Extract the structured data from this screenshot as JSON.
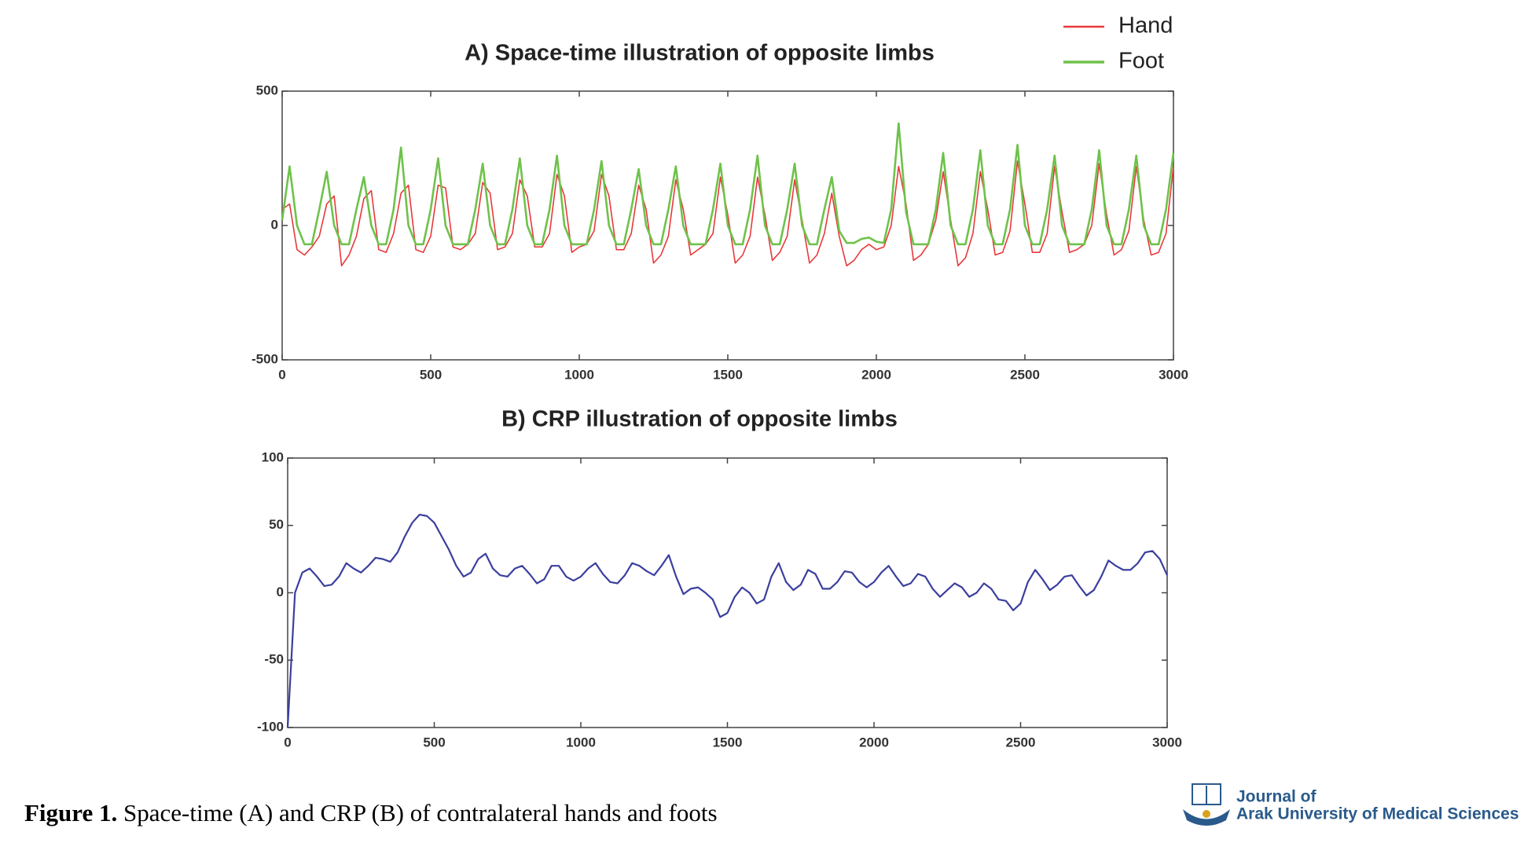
{
  "chart_data": [
    {
      "type": "line",
      "title": "A) Space-time illustration of opposite limbs",
      "x": [
        0,
        25,
        50,
        75,
        100,
        125,
        150,
        175,
        200,
        225,
        250,
        275,
        300,
        325,
        350,
        375,
        400,
        425,
        450,
        475,
        500,
        525,
        550,
        575,
        600,
        625,
        650,
        675,
        700,
        725,
        750,
        775,
        800,
        825,
        850,
        875,
        900,
        925,
        950,
        975,
        1000,
        1025,
        1050,
        1075,
        1100,
        1125,
        1150,
        1175,
        1200,
        1225,
        1250,
        1275,
        1300,
        1325,
        1350,
        1375,
        1400,
        1425,
        1450,
        1475,
        1500,
        1525,
        1550,
        1575,
        1600,
        1625,
        1650,
        1675,
        1700,
        1725,
        1750,
        1775,
        1800,
        1825,
        1850,
        1875,
        1900,
        1925,
        1950,
        1975,
        2000,
        2025,
        2050,
        2075,
        2100,
        2125,
        2150,
        2175,
        2200,
        2225,
        2250,
        2275,
        2300,
        2325,
        2350,
        2375,
        2400,
        2425,
        2450,
        2475,
        2500,
        2525,
        2550,
        2575,
        2600,
        2625,
        2650,
        2675,
        2700,
        2725,
        2750,
        2775,
        2800,
        2825,
        2850,
        2875,
        2900,
        2925,
        2950,
        2975,
        3000
      ],
      "series": [
        {
          "name": "Hand",
          "color": "#e8393a",
          "values": [
            60,
            80,
            -90,
            -110,
            -80,
            -40,
            80,
            110,
            -150,
            -110,
            -40,
            100,
            130,
            -90,
            -100,
            -30,
            120,
            150,
            -90,
            -100,
            -40,
            150,
            140,
            -80,
            -90,
            -70,
            -30,
            160,
            120,
            -90,
            -80,
            -30,
            170,
            110,
            -80,
            -80,
            -30,
            190,
            110,
            -100,
            -80,
            -70,
            -20,
            190,
            110,
            -90,
            -90,
            -30,
            150,
            60,
            -140,
            -110,
            -40,
            170,
            60,
            -110,
            -90,
            -70,
            -30,
            180,
            40,
            -140,
            -110,
            -40,
            180,
            40,
            -130,
            -100,
            -40,
            170,
            20,
            -140,
            -110,
            -30,
            120,
            -40,
            -150,
            -130,
            -90,
            -70,
            -90,
            -80,
            0,
            220,
            80,
            -130,
            -110,
            -70,
            20,
            200,
            20,
            -150,
            -120,
            -30,
            200,
            60,
            -110,
            -100,
            -20,
            240,
            80,
            -100,
            -100,
            -30,
            220,
            50,
            -100,
            -90,
            -70,
            0,
            230,
            40,
            -110,
            -90,
            -20,
            220,
            20,
            -110,
            -100,
            -30,
            220
          ]
        },
        {
          "name": "Foot",
          "color": "#6ec24a",
          "values": [
            20,
            220,
            0,
            -70,
            -70,
            60,
            200,
            0,
            -70,
            -70,
            60,
            180,
            0,
            -70,
            -70,
            60,
            290,
            0,
            -70,
            -70,
            60,
            250,
            0,
            -70,
            -70,
            -70,
            60,
            230,
            0,
            -70,
            -70,
            60,
            250,
            0,
            -70,
            -70,
            60,
            260,
            0,
            -70,
            -70,
            -70,
            60,
            240,
            0,
            -70,
            -70,
            60,
            210,
            0,
            -70,
            -70,
            60,
            220,
            0,
            -70,
            -70,
            -70,
            60,
            230,
            0,
            -70,
            -70,
            60,
            260,
            0,
            -70,
            -70,
            60,
            230,
            0,
            -70,
            -70,
            60,
            180,
            -20,
            -65,
            -65,
            -50,
            -45,
            -60,
            -65,
            60,
            380,
            50,
            -70,
            -70,
            -70,
            60,
            270,
            0,
            -70,
            -70,
            60,
            280,
            0,
            -70,
            -70,
            60,
            300,
            0,
            -70,
            -70,
            60,
            260,
            0,
            -70,
            -70,
            -70,
            60,
            280,
            0,
            -70,
            -70,
            60,
            260,
            0,
            -70,
            -70,
            60,
            270
          ]
        }
      ],
      "xlim": [
        0,
        3000
      ],
      "xticks": [
        0,
        500,
        1000,
        1500,
        2000,
        2500,
        3000
      ],
      "ylim": [
        -500,
        500
      ],
      "yticks": [
        -500,
        0,
        500
      ],
      "legend": "upper right"
    },
    {
      "type": "line",
      "title": "B) CRP illustration of opposite limbs",
      "x": [
        0,
        25,
        50,
        75,
        100,
        125,
        150,
        175,
        200,
        225,
        250,
        275,
        300,
        325,
        350,
        375,
        400,
        425,
        450,
        475,
        500,
        525,
        550,
        575,
        600,
        625,
        650,
        675,
        700,
        725,
        750,
        775,
        800,
        825,
        850,
        875,
        900,
        925,
        950,
        975,
        1000,
        1025,
        1050,
        1075,
        1100,
        1125,
        1150,
        1175,
        1200,
        1225,
        1250,
        1275,
        1300,
        1325,
        1350,
        1375,
        1400,
        1425,
        1450,
        1475,
        1500,
        1525,
        1550,
        1575,
        1600,
        1625,
        1650,
        1675,
        1700,
        1725,
        1750,
        1775,
        1800,
        1825,
        1850,
        1875,
        1900,
        1925,
        1950,
        1975,
        2000,
        2025,
        2050,
        2075,
        2100,
        2125,
        2150,
        2175,
        2200,
        2225,
        2250,
        2275,
        2300,
        2325,
        2350,
        2375,
        2400,
        2425,
        2450,
        2475,
        2500,
        2525,
        2550,
        2575,
        2600,
        2625,
        2650,
        2675,
        2700,
        2725,
        2750,
        2775,
        2800,
        2825,
        2850,
        2875,
        2900,
        2925,
        2950,
        2975,
        3000
      ],
      "values": [
        -100,
        0,
        15,
        18,
        12,
        5,
        6,
        12,
        22,
        18,
        15,
        20,
        26,
        25,
        23,
        30,
        42,
        52,
        58,
        57,
        52,
        42,
        32,
        20,
        12,
        15,
        25,
        29,
        18,
        13,
        12,
        18,
        20,
        14,
        7,
        10,
        20,
        20,
        12,
        9,
        12,
        18,
        22,
        14,
        8,
        7,
        13,
        22,
        20,
        16,
        13,
        20,
        28,
        12,
        -1,
        3,
        4,
        0,
        -5,
        -18,
        -15,
        -3,
        4,
        0,
        -8,
        -5,
        12,
        22,
        8,
        2,
        6,
        17,
        14,
        3,
        3,
        8,
        16,
        15,
        8,
        4,
        8,
        15,
        20,
        12,
        5,
        7,
        14,
        12,
        3,
        -3,
        2,
        7,
        4,
        -3,
        0,
        7,
        3,
        -5,
        -6,
        -13,
        -8,
        8,
        17,
        10,
        2,
        6,
        12,
        13,
        5,
        -2,
        2,
        12,
        24,
        20,
        17,
        17,
        22,
        30,
        31,
        25,
        13
      ],
      "color": "#3b3f9e",
      "xlim": [
        0,
        3000
      ],
      "xticks": [
        0,
        500,
        1000,
        1500,
        2000,
        2500,
        3000
      ],
      "ylim": [
        -100,
        100
      ],
      "yticks": [
        -100,
        -50,
        0,
        50,
        100
      ]
    }
  ],
  "caption": {
    "label": "Figure 1.",
    "text": "Space-time (A) and CRP (B) of contralateral hands and foots"
  },
  "journal": [
    "Journal of",
    "Arak University of Medical Sciences"
  ]
}
